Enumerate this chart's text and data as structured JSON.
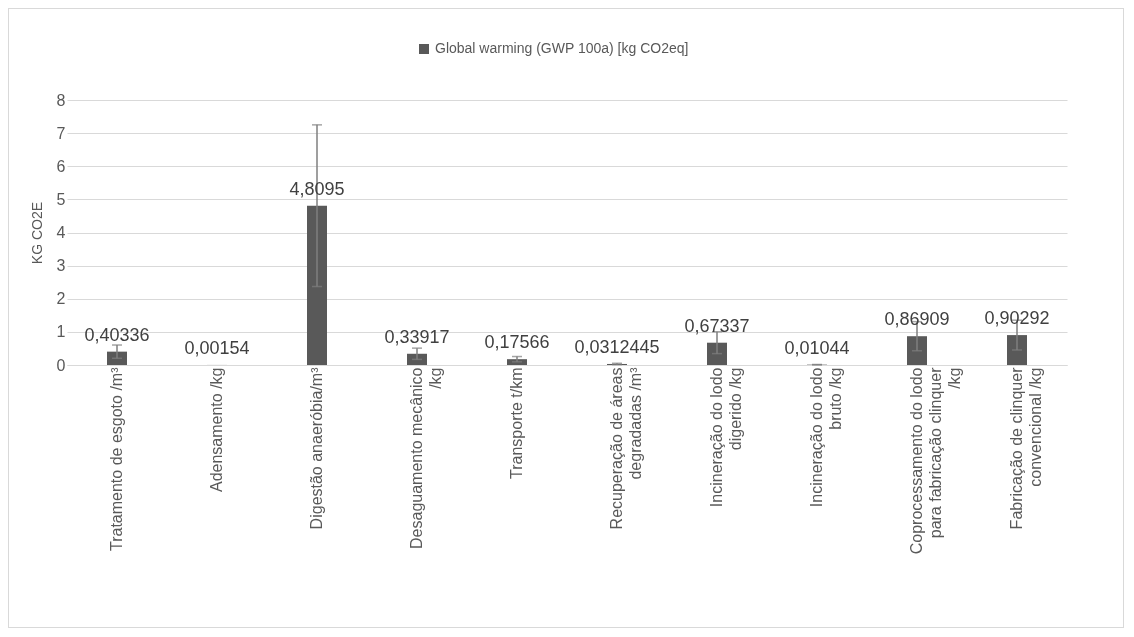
{
  "chart_data": {
    "type": "bar",
    "ylabel": "KG CO2E",
    "categories": [
      "Tratamento de esgoto /m³",
      "Adensamento /kg",
      "Digestão anaeróbia/m³",
      "Desaguamento mecânico /kg",
      "Transporte t/km",
      "Recuperação de áreas degradadas /m³",
      "Incineração do lodo digerido /kg",
      "Incineração do lodo bruto /kg",
      "Coprocessamento do lodo para fabricação clinquer /kg",
      "Fabricação de clinquer convencional /kg"
    ],
    "series": [
      {
        "name": "Global warming (GWP 100a) [kg CO2eq]",
        "color": "#595959",
        "values": [
          0.40336,
          0.00154,
          4.8095,
          0.33917,
          0.17566,
          0.0312445,
          0.67337,
          0.01044,
          0.86909,
          0.90292
        ],
        "value_labels": [
          "0,40336",
          "0,00154",
          "4,8095",
          "0,33917",
          "0,17566",
          "0,0312445",
          "0,67337",
          "0,01044",
          "0,86909",
          "0,90292"
        ],
        "errors": [
          0.2,
          null,
          2.44,
          0.17,
          0.08,
          0.02,
          0.33,
          0.005,
          0.44,
          0.45
        ]
      }
    ],
    "ylim": [
      0,
      8
    ],
    "yticks": [
      0,
      1,
      2,
      3,
      4,
      5,
      6,
      7,
      8
    ],
    "grid": "y",
    "legend": "top"
  }
}
